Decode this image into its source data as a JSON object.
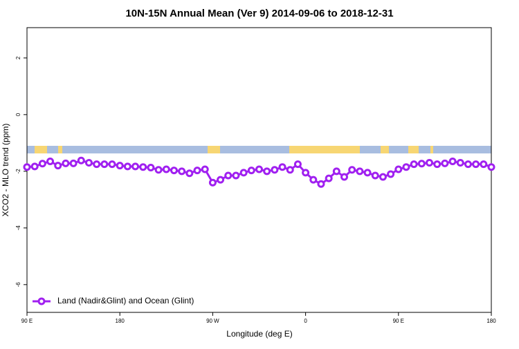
{
  "chart_data": {
    "type": "line",
    "title": "10N-15N Annual Mean (Ver 9)   2014-09-06 to 2018-12-31",
    "x_label": "Longitude (deg E)",
    "y_label": "XCO2 - MLO trend (ppm)",
    "x": [
      90,
      97.5,
      105,
      112.5,
      120,
      127.5,
      135,
      142.5,
      150,
      157.5,
      165,
      172.5,
      180,
      187.5,
      195,
      202.5,
      210,
      217.5,
      225,
      232.5,
      240,
      247.5,
      255,
      262.5,
      270,
      277.5,
      285,
      292.5,
      300,
      307.5,
      315,
      322.5,
      330,
      337.5,
      345,
      352.5,
      360,
      367.5,
      375,
      382.5,
      390,
      397.5,
      405,
      412.5,
      420,
      427.5,
      435,
      442.5,
      450,
      457.5,
      465,
      472.5,
      480,
      487.5,
      495,
      502.5,
      510,
      517.5,
      525,
      532.5,
      540
    ],
    "series": [
      {
        "name": "Land (Nadir&Glint) and Ocean (Glint)",
        "color": "#a020f0",
        "values": [
          -1.85,
          -1.83,
          -1.73,
          -1.65,
          -1.8,
          -1.72,
          -1.72,
          -1.62,
          -1.7,
          -1.75,
          -1.75,
          -1.75,
          -1.8,
          -1.83,
          -1.83,
          -1.85,
          -1.87,
          -1.95,
          -1.93,
          -1.97,
          -2.0,
          -2.07,
          -1.97,
          -1.93,
          -2.4,
          -2.3,
          -2.15,
          -2.15,
          -2.05,
          -1.97,
          -1.93,
          -2.0,
          -1.95,
          -1.85,
          -1.95,
          -1.75,
          -2.05,
          -2.3,
          -2.45,
          -2.25,
          -2.0,
          -2.2,
          -1.95,
          -2.0,
          -2.05,
          -2.15,
          -2.2,
          -2.1,
          -1.93,
          -1.85,
          -1.75,
          -1.73,
          -1.7,
          -1.75,
          -1.72,
          -1.65,
          -1.7,
          -1.75,
          -1.75,
          -1.75,
          -1.85
        ]
      }
    ],
    "xlim": [
      90,
      540
    ],
    "xticks": [
      {
        "value": 90,
        "label": "90 E"
      },
      180,
      {
        "value": 270,
        "label": "90 W"
      },
      {
        "value": 360,
        "label": "0"
      },
      {
        "value": 450,
        "label": "90 E"
      },
      {
        "value": 540,
        "label": "180"
      }
    ],
    "ylim": [
      -6.98,
      3.07
    ],
    "yticks": [
      -6,
      -4,
      -2,
      0,
      2
    ],
    "legend": "bottom-left"
  }
}
